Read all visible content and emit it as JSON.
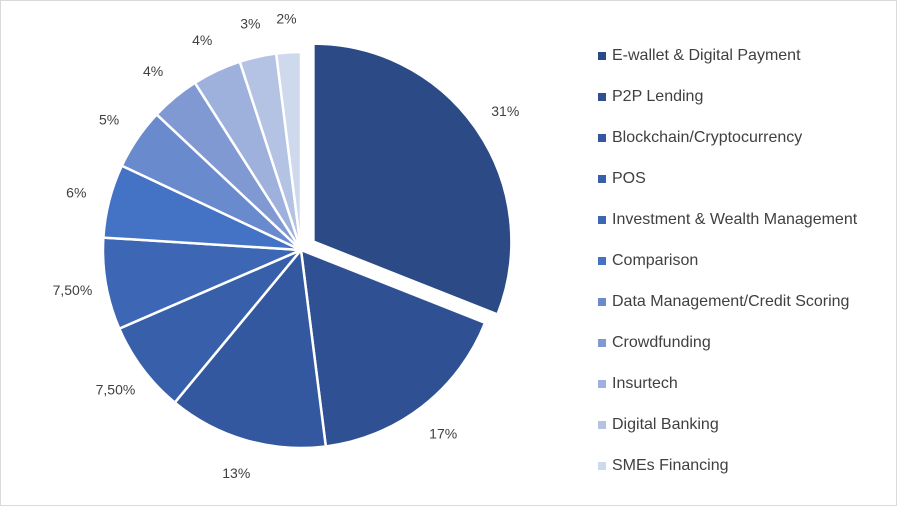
{
  "chart_data": {
    "type": "pie",
    "title": "",
    "legend_position": "right",
    "exploded_slice": "E-wallet & Digital Payment",
    "slices": [
      {
        "name": "E-wallet & Digital Payment",
        "value": 31,
        "label": "31%",
        "color": "#2b4a86"
      },
      {
        "name": "P2P Lending",
        "value": 17,
        "label": "17%",
        "color": "#2f5193"
      },
      {
        "name": "Blockchain/Cryptocurrency",
        "value": 13,
        "label": "13%",
        "color": "#33589f"
      },
      {
        "name": "POS",
        "value": 7.5,
        "label": "7,50%",
        "color": "#3860aa"
      },
      {
        "name": "Investment & Wealth Management",
        "value": 7.5,
        "label": "7,50%",
        "color": "#3d67b5"
      },
      {
        "name": "Comparison",
        "value": 6,
        "label": "6%",
        "color": "#4472c4"
      },
      {
        "name": "Data Management/Credit Scoring",
        "value": 5,
        "label": "5%",
        "color": "#6a8ace"
      },
      {
        "name": "Crowdfunding",
        "value": 4,
        "label": "4%",
        "color": "#8099d3"
      },
      {
        "name": "Insurtech",
        "value": 4,
        "label": "4%",
        "color": "#9eb1dd"
      },
      {
        "name": "Digital Banking",
        "value": 3,
        "label": "3%",
        "color": "#b4c2e4"
      },
      {
        "name": "SMEs Financing",
        "value": 2,
        "label": "2%",
        "color": "#cfd9ee"
      }
    ]
  }
}
